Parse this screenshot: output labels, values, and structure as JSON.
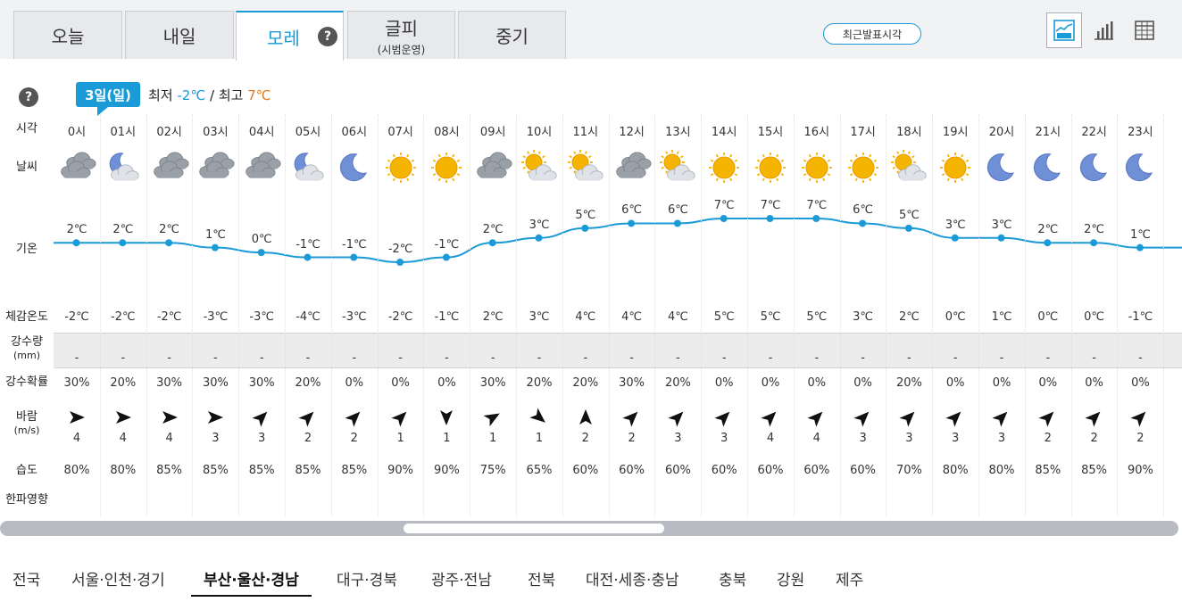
{
  "tabs": [
    {
      "label": "오늘",
      "sub": ""
    },
    {
      "label": "내일",
      "sub": ""
    },
    {
      "label": "모레",
      "sub": "",
      "active": true,
      "help": "?"
    },
    {
      "label": "글피",
      "sub": "(시범운영)"
    },
    {
      "label": "중기",
      "sub": ""
    }
  ],
  "recent_button": "최근발표시각",
  "view_icons": [
    "line-chart-icon",
    "bar-chart-icon",
    "table-icon"
  ],
  "help_text": "?",
  "date_badge": "3일(일)",
  "summary": {
    "min_label": "최저",
    "min_value": "-2℃",
    "separator": "/",
    "max_label": "최고",
    "max_value": "7℃"
  },
  "row_labels": {
    "time": "시각",
    "weather": "날씨",
    "temp": "기온",
    "feels": "체감온도",
    "precip_amount": "강수량",
    "precip_unit": "(mm)",
    "precip_prob": "강수확률",
    "wind": "바람",
    "wind_unit": "(m/s)",
    "humidity": "습도",
    "cold_wave": "한파영향"
  },
  "hours": [
    {
      "time": "0시",
      "icon": "cloudy-icon",
      "temp": "2℃",
      "t": 2,
      "feels": "-2℃",
      "precip": "-",
      "prob": "30%",
      "wind_dir": "east-arrow-icon",
      "wind_deg": 90,
      "wind": "4",
      "humidity": "80%"
    },
    {
      "time": "01시",
      "icon": "partly-cloudy-night-icon",
      "temp": "2℃",
      "t": 2,
      "feels": "-2℃",
      "precip": "-",
      "prob": "20%",
      "wind_dir": "east-arrow-icon",
      "wind_deg": 90,
      "wind": "4",
      "humidity": "80%"
    },
    {
      "time": "02시",
      "icon": "cloudy-icon",
      "temp": "2℃",
      "t": 2,
      "feels": "-2℃",
      "precip": "-",
      "prob": "30%",
      "wind_dir": "east-arrow-icon",
      "wind_deg": 90,
      "wind": "4",
      "humidity": "85%"
    },
    {
      "time": "03시",
      "icon": "cloudy-icon",
      "temp": "1℃",
      "t": 1,
      "feels": "-3℃",
      "precip": "-",
      "prob": "30%",
      "wind_dir": "east-arrow-icon",
      "wind_deg": 90,
      "wind": "3",
      "humidity": "85%"
    },
    {
      "time": "04시",
      "icon": "cloudy-icon",
      "temp": "0℃",
      "t": 0,
      "feels": "-3℃",
      "precip": "-",
      "prob": "30%",
      "wind_dir": "northeast-arrow-icon",
      "wind_deg": 45,
      "wind": "3",
      "humidity": "85%"
    },
    {
      "time": "05시",
      "icon": "partly-cloudy-night-icon",
      "temp": "-1℃",
      "t": -1,
      "feels": "-4℃",
      "precip": "-",
      "prob": "20%",
      "wind_dir": "northeast-arrow-icon",
      "wind_deg": 45,
      "wind": "2",
      "humidity": "85%"
    },
    {
      "time": "06시",
      "icon": "moon-icon",
      "temp": "-1℃",
      "t": -1,
      "feels": "-3℃",
      "precip": "-",
      "prob": "0%",
      "wind_dir": "northeast-arrow-icon",
      "wind_deg": 45,
      "wind": "2",
      "humidity": "85%"
    },
    {
      "time": "07시",
      "icon": "sun-icon",
      "temp": "-2℃",
      "t": -2,
      "feels": "-2℃",
      "precip": "-",
      "prob": "0%",
      "wind_dir": "northeast-arrow-icon",
      "wind_deg": 45,
      "wind": "1",
      "humidity": "90%"
    },
    {
      "time": "08시",
      "icon": "sun-icon",
      "temp": "-1℃",
      "t": -1,
      "feels": "-1℃",
      "precip": "-",
      "prob": "0%",
      "wind_dir": "south-arrow-icon",
      "wind_deg": 180,
      "wind": "1",
      "humidity": "90%"
    },
    {
      "time": "09시",
      "icon": "cloudy-icon",
      "temp": "2℃",
      "t": 2,
      "feels": "2℃",
      "precip": "-",
      "prob": "30%",
      "wind_dir": "northeast-arrow-icon",
      "wind_deg": 60,
      "wind": "1",
      "humidity": "75%"
    },
    {
      "time": "10시",
      "icon": "partly-cloudy-day-icon",
      "temp": "3℃",
      "t": 3,
      "feels": "3℃",
      "precip": "-",
      "prob": "20%",
      "wind_dir": "southeast-arrow-icon",
      "wind_deg": 130,
      "wind": "1",
      "humidity": "65%"
    },
    {
      "time": "11시",
      "icon": "partly-cloudy-day-icon",
      "temp": "5℃",
      "t": 5,
      "feels": "4℃",
      "precip": "-",
      "prob": "20%",
      "wind_dir": "north-arrow-icon",
      "wind_deg": 0,
      "wind": "2",
      "humidity": "60%"
    },
    {
      "time": "12시",
      "icon": "cloudy-icon",
      "temp": "6℃",
      "t": 6,
      "feels": "4℃",
      "precip": "-",
      "prob": "30%",
      "wind_dir": "northeast-arrow-icon",
      "wind_deg": 45,
      "wind": "2",
      "humidity": "60%"
    },
    {
      "time": "13시",
      "icon": "partly-cloudy-day-icon",
      "temp": "6℃",
      "t": 6,
      "feels": "4℃",
      "precip": "-",
      "prob": "20%",
      "wind_dir": "northeast-arrow-icon",
      "wind_deg": 45,
      "wind": "3",
      "humidity": "60%"
    },
    {
      "time": "14시",
      "icon": "sun-icon",
      "temp": "7℃",
      "t": 7,
      "feels": "5℃",
      "precip": "-",
      "prob": "0%",
      "wind_dir": "northeast-arrow-icon",
      "wind_deg": 45,
      "wind": "3",
      "humidity": "60%"
    },
    {
      "time": "15시",
      "icon": "sun-icon",
      "temp": "7℃",
      "t": 7,
      "feels": "5℃",
      "precip": "-",
      "prob": "0%",
      "wind_dir": "northeast-arrow-icon",
      "wind_deg": 45,
      "wind": "4",
      "humidity": "60%"
    },
    {
      "time": "16시",
      "icon": "sun-icon",
      "temp": "7℃",
      "t": 7,
      "feels": "5℃",
      "precip": "-",
      "prob": "0%",
      "wind_dir": "northeast-arrow-icon",
      "wind_deg": 45,
      "wind": "4",
      "humidity": "60%"
    },
    {
      "time": "17시",
      "icon": "sun-icon",
      "temp": "6℃",
      "t": 6,
      "feels": "3℃",
      "precip": "-",
      "prob": "0%",
      "wind_dir": "northeast-arrow-icon",
      "wind_deg": 45,
      "wind": "3",
      "humidity": "60%"
    },
    {
      "time": "18시",
      "icon": "partly-cloudy-day-icon",
      "temp": "5℃",
      "t": 5,
      "feels": "2℃",
      "precip": "-",
      "prob": "20%",
      "wind_dir": "northeast-arrow-icon",
      "wind_deg": 45,
      "wind": "3",
      "humidity": "70%"
    },
    {
      "time": "19시",
      "icon": "sun-icon",
      "temp": "3℃",
      "t": 3,
      "feels": "0℃",
      "precip": "-",
      "prob": "0%",
      "wind_dir": "northeast-arrow-icon",
      "wind_deg": 45,
      "wind": "3",
      "humidity": "80%"
    },
    {
      "time": "20시",
      "icon": "moon-icon",
      "temp": "3℃",
      "t": 3,
      "feels": "1℃",
      "precip": "-",
      "prob": "0%",
      "wind_dir": "northeast-arrow-icon",
      "wind_deg": 45,
      "wind": "3",
      "humidity": "80%"
    },
    {
      "time": "21시",
      "icon": "moon-icon",
      "temp": "2℃",
      "t": 2,
      "feels": "0℃",
      "precip": "-",
      "prob": "0%",
      "wind_dir": "northeast-arrow-icon",
      "wind_deg": 45,
      "wind": "2",
      "humidity": "85%"
    },
    {
      "time": "22시",
      "icon": "moon-icon",
      "temp": "2℃",
      "t": 2,
      "feels": "0℃",
      "precip": "-",
      "prob": "0%",
      "wind_dir": "northeast-arrow-icon",
      "wind_deg": 45,
      "wind": "2",
      "humidity": "85%"
    },
    {
      "time": "23시",
      "icon": "moon-icon",
      "temp": "1℃",
      "t": 1,
      "feels": "-1℃",
      "precip": "-",
      "prob": "0%",
      "wind_dir": "northeast-arrow-icon",
      "wind_deg": 45,
      "wind": "2",
      "humidity": "90%"
    }
  ],
  "colors": {
    "accent": "#1a9ad6",
    "max": "#e07a1f",
    "sun": "#f5b400",
    "moon": "#6f8fd6",
    "cloud": "#9aa0a8"
  },
  "regions": [
    {
      "label": "전국"
    },
    {
      "label": "서울·인천·경기"
    },
    {
      "label": "부산·울산·경남",
      "active": true
    },
    {
      "label": "대구·경북"
    },
    {
      "label": "광주·전남"
    },
    {
      "label": "전북"
    },
    {
      "label": "대전·세종·충남"
    },
    {
      "label": "충북"
    },
    {
      "label": "강원"
    },
    {
      "label": "제주"
    }
  ]
}
